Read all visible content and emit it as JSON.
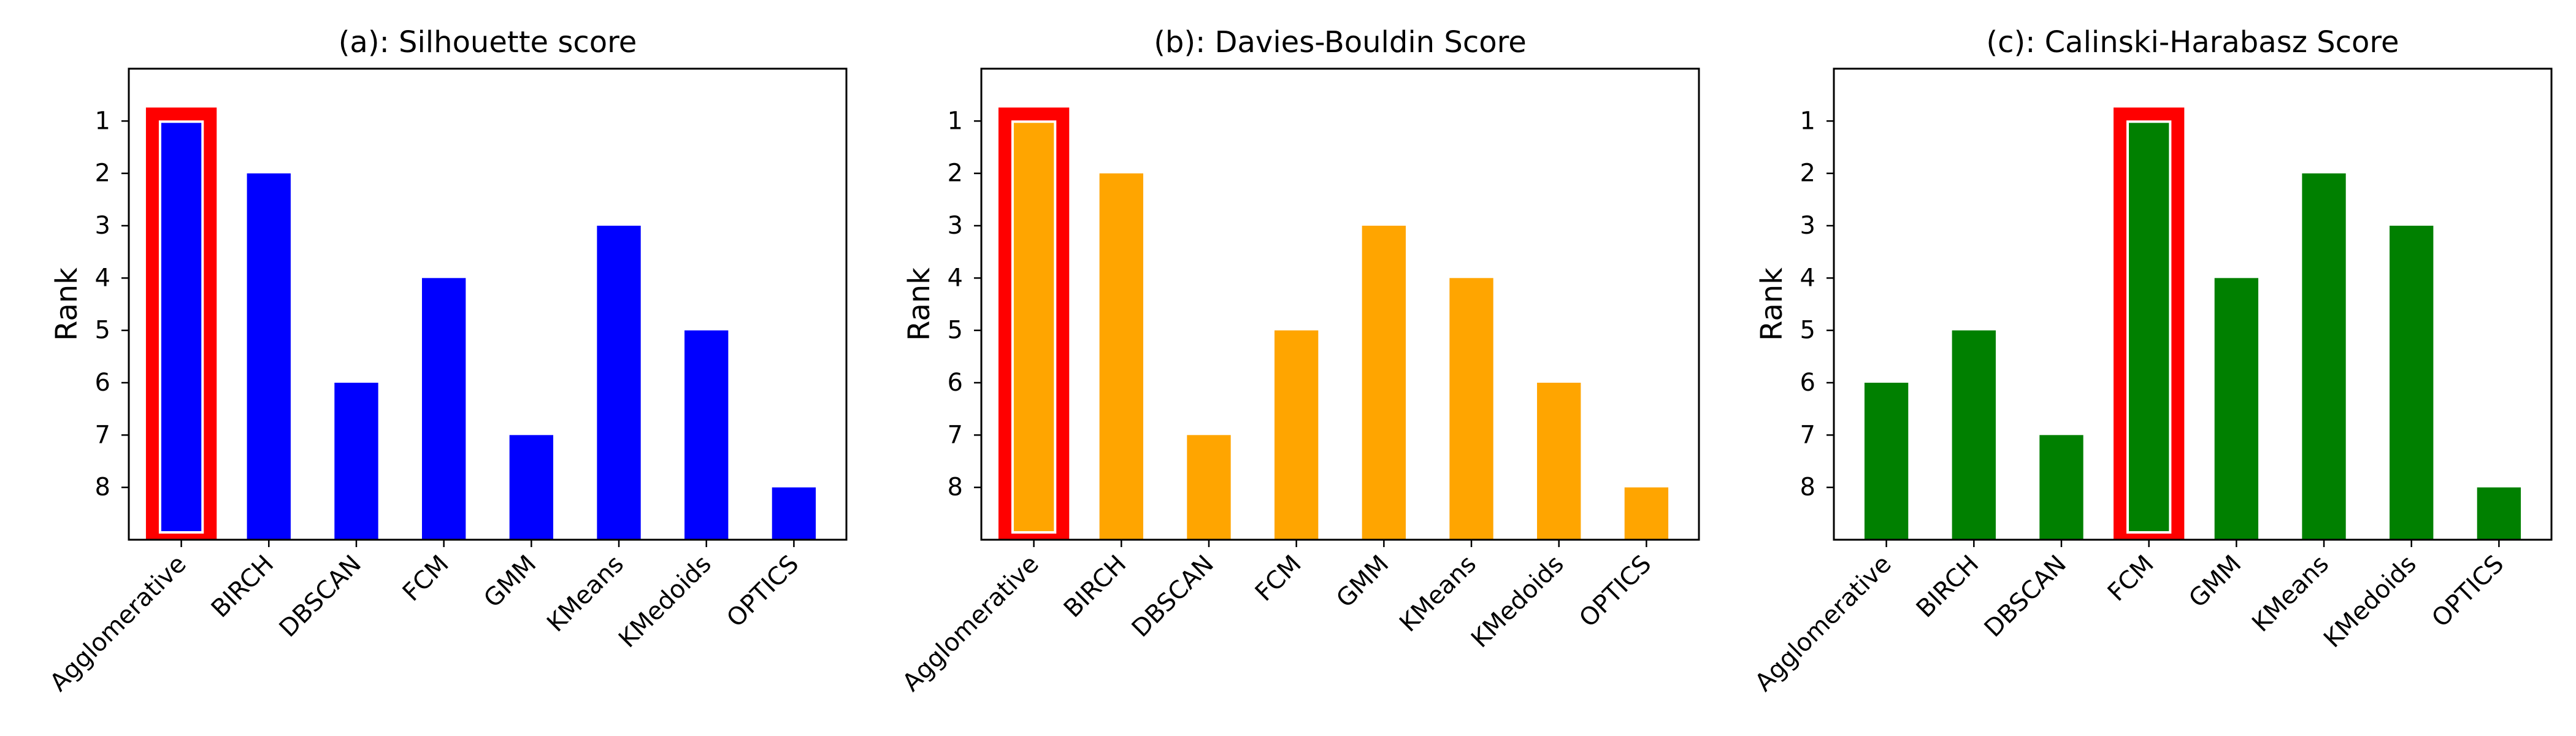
{
  "chart_data": [
    {
      "type": "bar",
      "title": "(a): Silhouette score",
      "ylabel": "Rank",
      "xlabel": "",
      "categories": [
        "Agglomerative",
        "BIRCH",
        "DBSCAN",
        "FCM",
        "GMM",
        "KMeans",
        "KMedoids",
        "OPTICS"
      ],
      "values": [
        1,
        2,
        6,
        4,
        7,
        3,
        5,
        8
      ],
      "yticks": [
        1,
        2,
        3,
        4,
        5,
        6,
        7,
        8
      ],
      "ylim": [
        0,
        9
      ],
      "y_inverted": true,
      "color": "#0000ff",
      "highlight_category": "Agglomerative",
      "highlight_color": "#ff0000",
      "grid": false
    },
    {
      "type": "bar",
      "title": "(b): Davies-Bouldin Score",
      "ylabel": "Rank",
      "xlabel": "",
      "categories": [
        "Agglomerative",
        "BIRCH",
        "DBSCAN",
        "FCM",
        "GMM",
        "KMeans",
        "KMedoids",
        "OPTICS"
      ],
      "values": [
        1,
        2,
        7,
        5,
        3,
        4,
        6,
        8
      ],
      "yticks": [
        1,
        2,
        3,
        4,
        5,
        6,
        7,
        8
      ],
      "ylim": [
        0,
        9
      ],
      "y_inverted": true,
      "color": "#ffa500",
      "highlight_category": "Agglomerative",
      "highlight_color": "#ff0000",
      "grid": false
    },
    {
      "type": "bar",
      "title": "(c): Calinski-Harabasz Score",
      "ylabel": "Rank",
      "xlabel": "",
      "categories": [
        "Agglomerative",
        "BIRCH",
        "DBSCAN",
        "FCM",
        "GMM",
        "KMeans",
        "KMedoids",
        "OPTICS"
      ],
      "values": [
        6,
        5,
        7,
        1,
        4,
        2,
        3,
        8
      ],
      "yticks": [
        1,
        2,
        3,
        4,
        5,
        6,
        7,
        8
      ],
      "ylim": [
        0,
        9
      ],
      "y_inverted": true,
      "color": "#008000",
      "highlight_category": "FCM",
      "highlight_color": "#ff0000",
      "grid": false
    }
  ]
}
